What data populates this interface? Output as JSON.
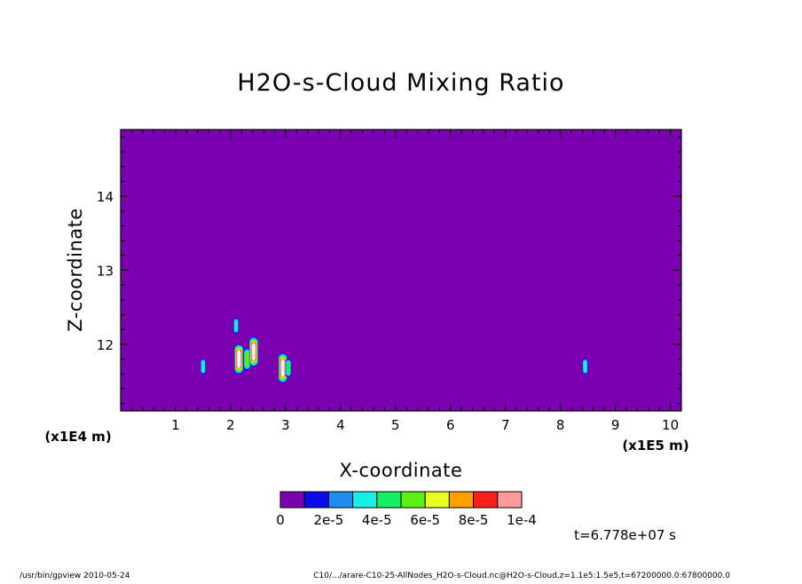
{
  "chart_data": {
    "type": "heatmap",
    "title": "H2O-s-Cloud Mixing Ratio",
    "xlabel": "X-coordinate",
    "ylabel": "Z-coordinate",
    "x_unit": "(x1E5 m)",
    "y_unit": "(x1E4 m)",
    "x_ticks": [
      "1",
      "2",
      "3",
      "4",
      "5",
      "6",
      "7",
      "8",
      "9",
      "10"
    ],
    "y_ticks": [
      "12",
      "13",
      "14"
    ],
    "xlim": [
      0,
      10.2
    ],
    "ylim": [
      11.1,
      14.9
    ],
    "background_value": 0,
    "background_color": "#7b00b0",
    "colorbar": {
      "colors": [
        "#7b00b0",
        "#0a0aee",
        "#1e8cf0",
        "#18f0e6",
        "#14f064",
        "#5af012",
        "#e6ff1e",
        "#ffa000",
        "#ff1e1e",
        "#ff9a9a"
      ],
      "tick_labels": [
        "0",
        "2e-5",
        "4e-5",
        "6e-5",
        "8e-5",
        "1e-4"
      ],
      "range": [
        0,
        0.0001
      ]
    },
    "features": [
      {
        "x": 1.5,
        "z": 11.7,
        "value": 3e-05
      },
      {
        "x": 2.1,
        "z": 12.25,
        "value": 3e-05
      },
      {
        "x": 2.15,
        "z": 11.8,
        "value": 0.0001
      },
      {
        "x": 2.3,
        "z": 11.8,
        "value": 6e-05
      },
      {
        "x": 2.42,
        "z": 11.9,
        "value": 0.0001
      },
      {
        "x": 2.95,
        "z": 11.68,
        "value": 0.0001
      },
      {
        "x": 3.05,
        "z": 11.68,
        "value": 4e-05
      },
      {
        "x": 8.45,
        "z": 11.7,
        "value": 3e-05
      }
    ],
    "time_label": "t=6.778e+07 s"
  },
  "footer": {
    "left": "/usr/bin/gpview  2010-05-24",
    "right": "C10/.../arare-C10-25-AllNodes_H2O-s-Cloud.nc@H2O-s-Cloud,z=1.1e5:1.5e5,t=67200000.0:67800000.0"
  }
}
